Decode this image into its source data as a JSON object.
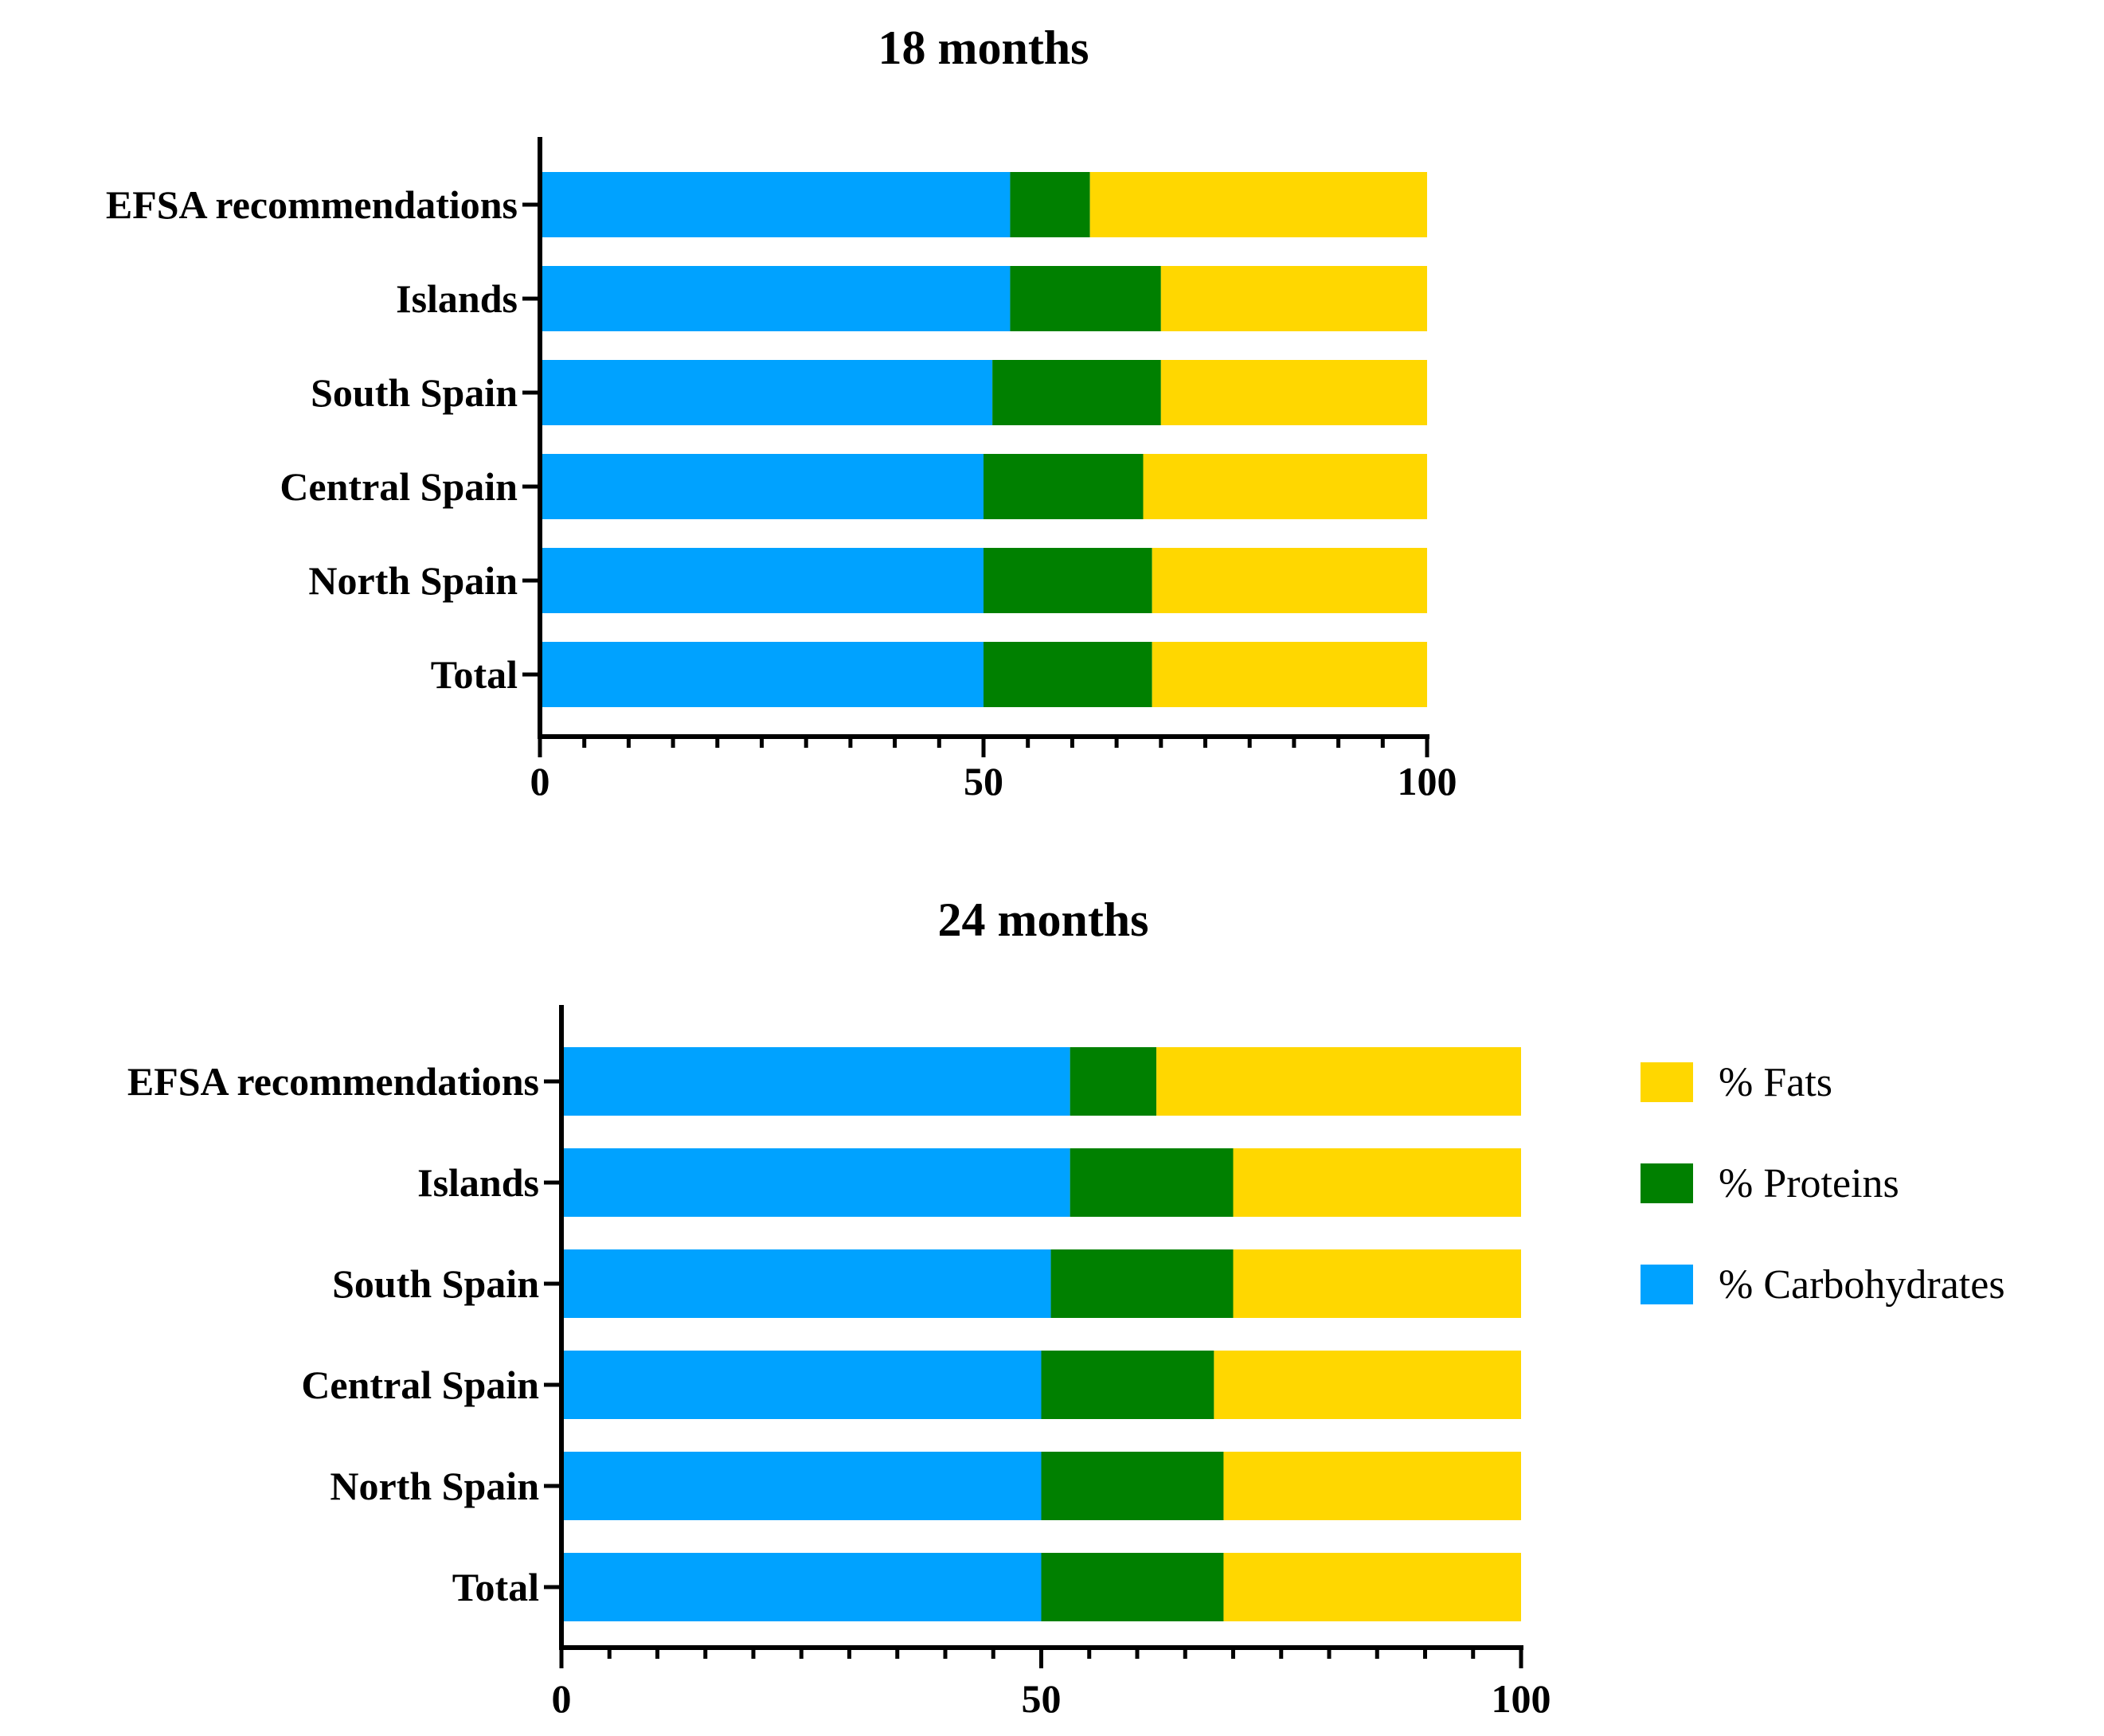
{
  "chart_data": [
    {
      "type": "bar",
      "orientation": "horizontal",
      "stacked": true,
      "title": "18 months",
      "categories": [
        "EFSA recommendations",
        "Islands",
        "South Spain",
        "Central Spain",
        "North Spain",
        "Total"
      ],
      "series": [
        {
          "name": "% Carbohydrates",
          "values": [
            53,
            53,
            51,
            50,
            50,
            50
          ]
        },
        {
          "name": "% Proteins",
          "values": [
            9,
            17,
            19,
            18,
            19,
            19
          ]
        },
        {
          "name": "% Fats",
          "values": [
            38,
            30,
            30,
            32,
            31,
            31
          ]
        }
      ],
      "xlim": [
        0,
        100
      ],
      "x_ticks": [
        "0",
        "50",
        "100"
      ],
      "grid": false
    },
    {
      "type": "bar",
      "orientation": "horizontal",
      "stacked": true,
      "title": "24 months",
      "categories": [
        "EFSA recommendations",
        "Islands",
        "South Spain",
        "Central Spain",
        "North Spain",
        "Total"
      ],
      "series": [
        {
          "name": "% Carbohydrates",
          "values": [
            53,
            53,
            51,
            50,
            50,
            50
          ]
        },
        {
          "name": "% Proteins",
          "values": [
            9,
            17,
            19,
            18,
            19,
            19
          ]
        },
        {
          "name": "% Fats",
          "values": [
            38,
            30,
            30,
            32,
            31,
            31
          ]
        }
      ],
      "xlim": [
        0,
        100
      ],
      "x_ticks": [
        "0",
        "50",
        "100"
      ],
      "grid": false
    }
  ],
  "legend": {
    "placement": "right",
    "items": [
      {
        "label": "% Fats",
        "color": "#FFD700"
      },
      {
        "label": "% Proteins",
        "color": "#008000"
      },
      {
        "label": "% Carbohydrates",
        "color": "#00A2FF"
      }
    ]
  },
  "colors": {
    "% Carbohydrates": "#00A2FF",
    "% Proteins": "#008000",
    "% Fats": "#FFD700"
  }
}
